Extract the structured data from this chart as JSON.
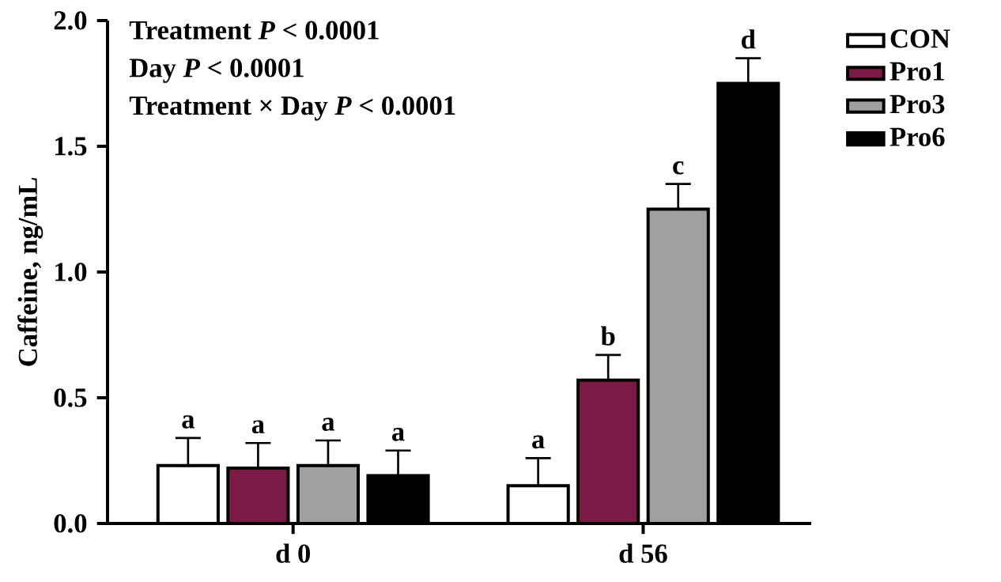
{
  "chart_data": {
    "type": "bar",
    "ylabel": "Caffeine, ng/mL",
    "categories": [
      "d 0",
      "d 56"
    ],
    "series": [
      {
        "name": "CON",
        "color": "#ffffff",
        "values": [
          0.23,
          0.15
        ],
        "errors": [
          [
            0.23,
            0.34
          ],
          [
            0.15,
            0.26
          ]
        ]
      },
      {
        "name": "Pro1",
        "color": "#7b1a45",
        "values": [
          0.22,
          0.57
        ],
        "errors": [
          [
            0.22,
            0.32
          ],
          [
            0.57,
            0.67
          ]
        ]
      },
      {
        "name": "Pro3",
        "color": "#a0a0a0",
        "values": [
          0.23,
          1.25
        ],
        "errors": [
          [
            0.23,
            0.33
          ],
          [
            1.25,
            1.35
          ]
        ]
      },
      {
        "name": "Pro6",
        "color": "#000000",
        "values": [
          0.19,
          1.75
        ],
        "errors": [
          [
            0.19,
            0.29
          ],
          [
            1.75,
            1.85
          ]
        ]
      }
    ],
    "ylim": [
      0,
      2.0
    ],
    "yticks": [
      {
        "value": 0,
        "label": "0.0"
      },
      {
        "value": 0.5,
        "label": "0.5"
      },
      {
        "value": 1.0,
        "label": "1.0"
      },
      {
        "value": 1.5,
        "label": "1.5"
      },
      {
        "value": 2.0,
        "label": "2.0"
      }
    ],
    "legend": "top right",
    "grid": false,
    "annotations": [
      "Treatment *P* < 0.0001",
      "Day *P* < 0.0001",
      "Treatment × Day *P* < 0.0001",
      "a",
      "a",
      "a",
      "a",
      "a",
      "b",
      "c",
      "d"
    ]
  }
}
